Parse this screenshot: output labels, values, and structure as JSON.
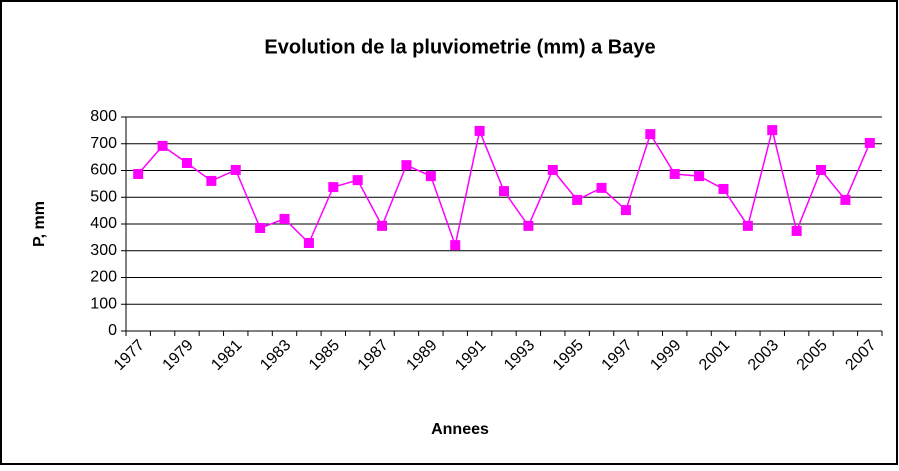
{
  "chart_data": {
    "type": "line",
    "title": "Evolution de la pluviometrie (mm) a Baye",
    "x_label": "Annees",
    "y_label": "P, mm",
    "categories": [
      "1977",
      null,
      "1979",
      null,
      "1981",
      null,
      "1983",
      null,
      "1985",
      null,
      "1987",
      null,
      "1989",
      null,
      "1991",
      null,
      "1993",
      null,
      "1995",
      null,
      "1997",
      null,
      "1999",
      null,
      "2001",
      null,
      "2003",
      null,
      "2005",
      null,
      "2007"
    ],
    "series": [
      {
        "name": "P",
        "color": "#ff00ff",
        "values": [
          587,
          692,
          628,
          561,
          602,
          385,
          419,
          329,
          538,
          564,
          393,
          620,
          579,
          321,
          748,
          523,
          393,
          602,
          490,
          535,
          452,
          736,
          587,
          579,
          531,
          393,
          751,
          374,
          602,
          490,
          703
        ]
      }
    ],
    "ylim": [
      0,
      800
    ],
    "yticks": [
      0,
      100,
      200,
      300,
      400,
      500,
      600,
      700,
      800
    ],
    "grid": true
  }
}
